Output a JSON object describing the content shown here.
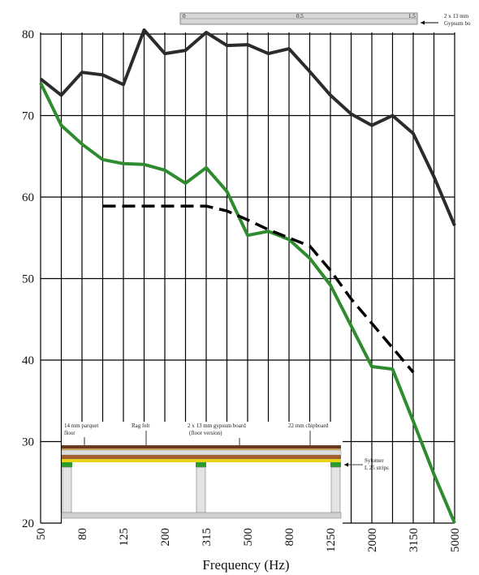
{
  "chart_data": {
    "type": "line",
    "xlabel": "Frequency (Hz)",
    "ylabel": "",
    "x_ticks": [
      "50",
      "63",
      "80",
      "100",
      "125",
      "160",
      "200",
      "250",
      "315",
      "400",
      "500",
      "630",
      "800",
      "1000",
      "1250",
      "1600",
      "2000",
      "2500",
      "3150",
      "4000",
      "5000"
    ],
    "x_tick_labels": [
      "50",
      "80",
      "125",
      "200",
      "315",
      "500",
      "800",
      "1250",
      "2000",
      "3150",
      "5000"
    ],
    "y_ticks": [
      20,
      30,
      40,
      50,
      60,
      70,
      80
    ],
    "ylim": [
      20,
      80
    ],
    "grid": true,
    "series": [
      {
        "color": "#2b2b2b",
        "style": "solid",
        "x": [
          "50",
          "63",
          "80",
          "100",
          "125",
          "160",
          "200",
          "250",
          "315",
          "400",
          "500",
          "630",
          "800",
          "1000",
          "1250",
          "1600",
          "2000",
          "2500",
          "3150",
          "4000",
          "5000"
        ],
        "values": [
          74.5,
          72.5,
          75.3,
          75.0,
          73.8,
          80.5,
          77.6,
          78.0,
          80.2,
          78.6,
          78.7,
          77.6,
          78.2,
          75.4,
          72.5,
          70.2,
          68.8,
          70.0,
          67.8,
          62.5,
          56.5
        ]
      },
      {
        "color": "#2e8b2e",
        "style": "solid",
        "x": [
          "50",
          "63",
          "80",
          "100",
          "125",
          "160",
          "200",
          "250",
          "315",
          "400",
          "500",
          "630",
          "800",
          "1000",
          "1250",
          "1600",
          "2000",
          "2500",
          "3150",
          "4000",
          "5000"
        ],
        "values": [
          74.0,
          68.8,
          66.5,
          64.6,
          64.1,
          64.0,
          63.3,
          61.7,
          63.6,
          60.7,
          55.3,
          55.8,
          54.8,
          52.5,
          49.2,
          44.2,
          39.2,
          38.9,
          32.5,
          26.0,
          20.0
        ]
      },
      {
        "color": "#000000",
        "style": "dashed",
        "x": [
          "100",
          "125",
          "160",
          "200",
          "250",
          "315",
          "400",
          "500",
          "630",
          "800",
          "1000",
          "1250",
          "1600",
          "2000",
          "2500",
          "3150"
        ],
        "values": [
          58.9,
          58.9,
          58.9,
          58.9,
          58.9,
          58.9,
          58.3,
          57.2,
          56.0,
          55.0,
          54.0,
          51.0,
          47.5,
          44.5,
          41.5,
          38.5
        ]
      }
    ],
    "annotations": {
      "top": {
        "scale_left": "0",
        "scale_mid": "0.5",
        "scale_right": "1.5",
        "label_line1": "2 x 13 mm",
        "label_line2": "Gypsum bo"
      },
      "floor": {
        "parquet_line1": "14 mm parquet",
        "parquet_line2": "floor",
        "rag_felt": "Rag felt",
        "gypsum_line1": "2 x 13 mm gypsum board",
        "gypsum_line2": "(floor version)",
        "chipboard": "22 mm chipboard",
        "sylomer_line1": "Sylomer",
        "sylomer_line2": "L 25 strips"
      }
    },
    "colors": {
      "top_curve": "#2b2b2b",
      "green_curve": "#2e8b2e",
      "dashed_curve": "#000000",
      "grid": "#000000",
      "chipboard": "#6b3a1e",
      "felt": "#c8a25a",
      "yellow_layer": "#e8d21a",
      "sylomer": "#2e9b2e"
    }
  }
}
